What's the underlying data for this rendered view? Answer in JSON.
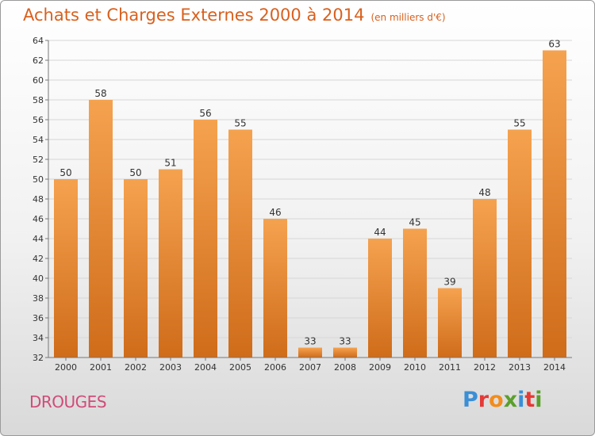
{
  "header": {
    "title": "Achats et Charges Externes 2000 à 2014",
    "subtitle": "(en milliers d'€)"
  },
  "footer": {
    "place": "DROUGES",
    "logo_letters": [
      "P",
      "r",
      "o",
      "x",
      "i",
      "t",
      "i"
    ],
    "logo_colors": [
      "#3a8fd6",
      "#e53935",
      "#f28c1c",
      "#5aa02c",
      "#3a8fd6",
      "#e53935",
      "#5aa02c"
    ]
  },
  "colors": {
    "bar_light": "#f5a24f",
    "bar_dark": "#cf6c1a",
    "title": "#d9601d",
    "place": "#d14b7a"
  },
  "chart_data": {
    "type": "bar",
    "categories": [
      "2000",
      "2001",
      "2002",
      "2003",
      "2004",
      "2005",
      "2006",
      "2007",
      "2008",
      "2009",
      "2010",
      "2011",
      "2012",
      "2013",
      "2014"
    ],
    "values": [
      50,
      58,
      50,
      51,
      56,
      55,
      46,
      33,
      33,
      44,
      45,
      39,
      48,
      55,
      63
    ],
    "title": "Achats et Charges Externes 2000 à 2014",
    "ylim": [
      32,
      64
    ],
    "yticks": [
      32,
      34,
      36,
      38,
      40,
      42,
      44,
      46,
      48,
      50,
      52,
      54,
      56,
      58,
      60,
      62,
      64
    ],
    "grid": true,
    "data_labels": true
  }
}
